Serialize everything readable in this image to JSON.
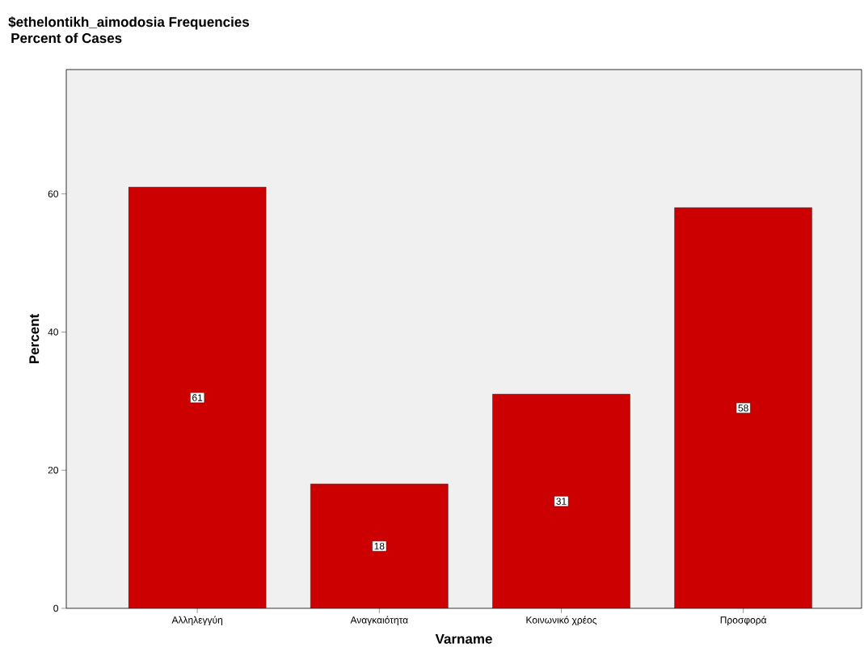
{
  "chart_data": {
    "type": "bar",
    "title": "$ethelontikh_aimodosia Frequencies",
    "subtitle": "Percent of Cases",
    "xlabel": "Varname",
    "ylabel": "Percent",
    "categories": [
      "Αλληλεγγύη",
      "Αναγκαιότητα",
      "Κοινωνικό χρέος",
      "Προσφορά"
    ],
    "values": [
      61,
      18,
      31,
      58
    ],
    "color": "#cc0000",
    "ylim": [
      0,
      78
    ],
    "yticks": [
      0,
      20,
      40,
      60
    ],
    "data_labels": true
  }
}
